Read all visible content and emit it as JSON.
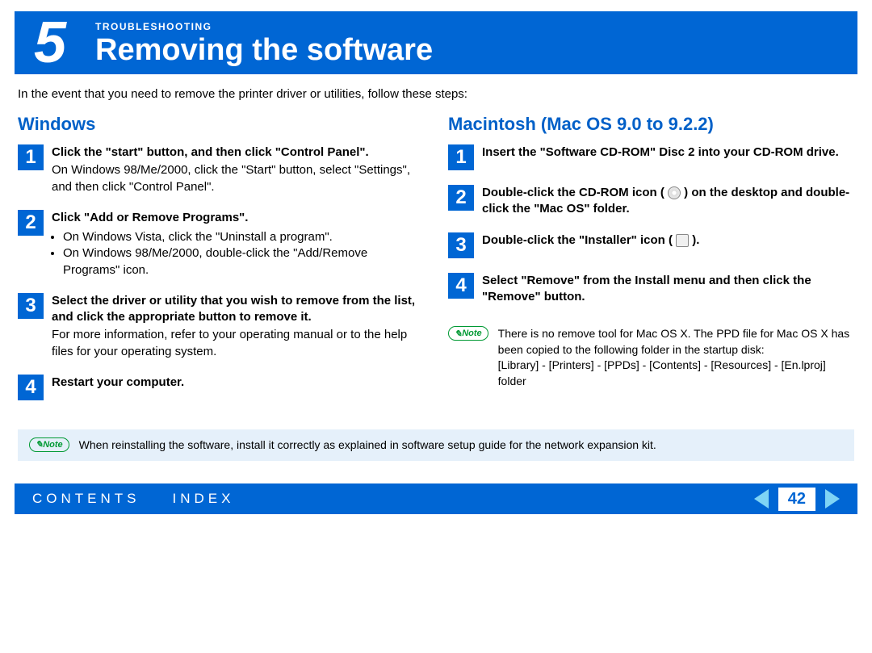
{
  "header": {
    "section_number": "5",
    "category": "TROUBLESHOOTING",
    "title": "Removing the software"
  },
  "intro": "In the event that you need to remove the printer driver or utilities, follow these steps:",
  "windows": {
    "heading": "Windows",
    "steps": [
      {
        "n": "1",
        "bold": "Click the \"start\" button, and then click \"Control Panel\".",
        "sub": "On Windows 98/Me/2000, click the \"Start\" button, select \"Settings\", and then click \"Control Panel\"."
      },
      {
        "n": "2",
        "bold": "Click \"Add or Remove Programs\".",
        "bullets": [
          "On Windows Vista, click the \"Uninstall a program\".",
          "On Windows 98/Me/2000, double-click the \"Add/Remove Programs\" icon."
        ]
      },
      {
        "n": "3",
        "bold": "Select the driver or utility that you wish to remove from the list, and click the appropriate button to remove it.",
        "sub": "For more information, refer to your operating manual or to the help files for your operating system."
      },
      {
        "n": "4",
        "bold": "Restart your computer."
      }
    ]
  },
  "mac": {
    "heading": "Macintosh (Mac OS 9.0 to 9.2.2)",
    "steps": [
      {
        "n": "1",
        "bold": "Insert the \"Software CD-ROM\" Disc 2 into your CD-ROM drive."
      },
      {
        "n": "2",
        "bold_pre": "Double-click the CD-ROM icon ( ",
        "bold_post": " ) on the desktop and double-click the \"Mac OS\" folder.",
        "icon": "cd"
      },
      {
        "n": "3",
        "bold_pre": "Double-click the \"Installer\" icon ( ",
        "bold_post": " ).",
        "icon": "installer"
      },
      {
        "n": "4",
        "bold": "Select \"Remove\" from the Install menu and then click the \"Remove\" button."
      }
    ],
    "note": "There is no remove tool for Mac OS X. The PPD file for Mac OS X has been copied to the following folder in the startup disk:",
    "note_path": "[Library] - [Printers] - [PPDs] - [Contents] - [Resources] - [En.lproj] folder"
  },
  "bottom_note": "When reinstalling the software, install it correctly as explained in software setup guide for the network expansion kit.",
  "note_label": "Note",
  "footer": {
    "contents": "CONTENTS",
    "index": "INDEX",
    "page": "42"
  }
}
